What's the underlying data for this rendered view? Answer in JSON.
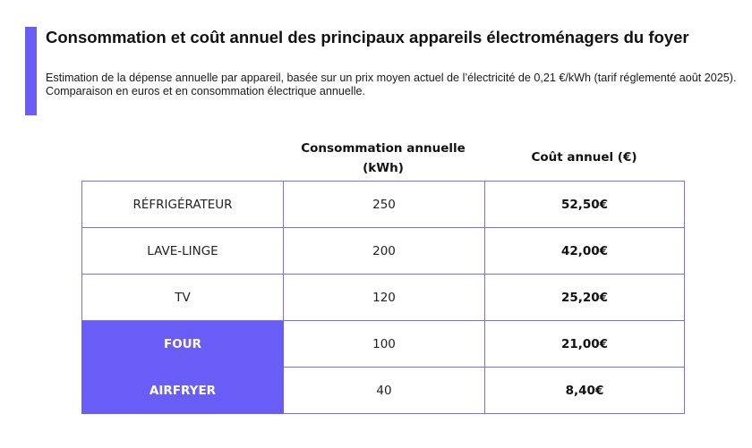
{
  "header": {
    "title": "Consommation et coût annuel des principaux appareils électroménagers du foyer",
    "subtitle": "Estimation de la dépense annuelle par appareil, basée sur un prix moyen actuel de l’électricité de 0,21 €/kWh (tarif réglementé août 2025). Comparaison en euros et en consommation électrique annuelle.",
    "accent_color": "#6a5cf6"
  },
  "chart_data": {
    "type": "table",
    "columns": [
      "",
      "Consommation annuelle (kWh)",
      "Coût annuel (€)"
    ],
    "rows": [
      {
        "appliance": "RÉFRIGÉRATEUR",
        "consumption": "250",
        "cost": "52,50€",
        "highlighted": false
      },
      {
        "appliance": "LAVE-LINGE",
        "consumption": "200",
        "cost": "42,00€",
        "highlighted": false
      },
      {
        "appliance": "TV",
        "consumption": "120",
        "cost": "25,20€",
        "highlighted": false
      },
      {
        "appliance": "FOUR",
        "consumption": "100",
        "cost": "21,00€",
        "highlighted": true
      },
      {
        "appliance": "AIRFRYER",
        "consumption": "40",
        "cost": "8,40€",
        "highlighted": true
      }
    ],
    "highlight_color": "#6a5cf6",
    "border_color": "#7b70e8"
  }
}
